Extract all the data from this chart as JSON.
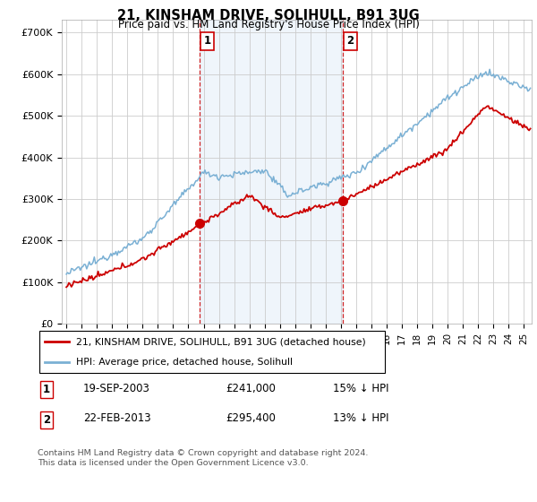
{
  "title": "21, KINSHAM DRIVE, SOLIHULL, B91 3UG",
  "subtitle": "Price paid vs. HM Land Registry's House Price Index (HPI)",
  "ylabel_ticks": [
    "£0",
    "£100K",
    "£200K",
    "£300K",
    "£400K",
    "£500K",
    "£600K",
    "£700K"
  ],
  "ytick_values": [
    0,
    100000,
    200000,
    300000,
    400000,
    500000,
    600000,
    700000
  ],
  "ylim": [
    0,
    730000
  ],
  "xlim_start": 1994.7,
  "xlim_end": 2025.5,
  "line1_color": "#cc0000",
  "line2_color": "#7ab0d4",
  "shade_color": "#ddeeff",
  "marker1_x": 2003.72,
  "marker1_y": 241000,
  "marker2_x": 2013.13,
  "marker2_y": 295400,
  "legend_line1": "21, KINSHAM DRIVE, SOLIHULL, B91 3UG (detached house)",
  "legend_line2": "HPI: Average price, detached house, Solihull",
  "table_row1": [
    "1",
    "19-SEP-2003",
    "£241,000",
    "15% ↓ HPI"
  ],
  "table_row2": [
    "2",
    "22-FEB-2013",
    "£295,400",
    "13% ↓ HPI"
  ],
  "footnote": "Contains HM Land Registry data © Crown copyright and database right 2024.\nThis data is licensed under the Open Government Licence v3.0.",
  "background_color": "#ffffff",
  "grid_color": "#cccccc"
}
